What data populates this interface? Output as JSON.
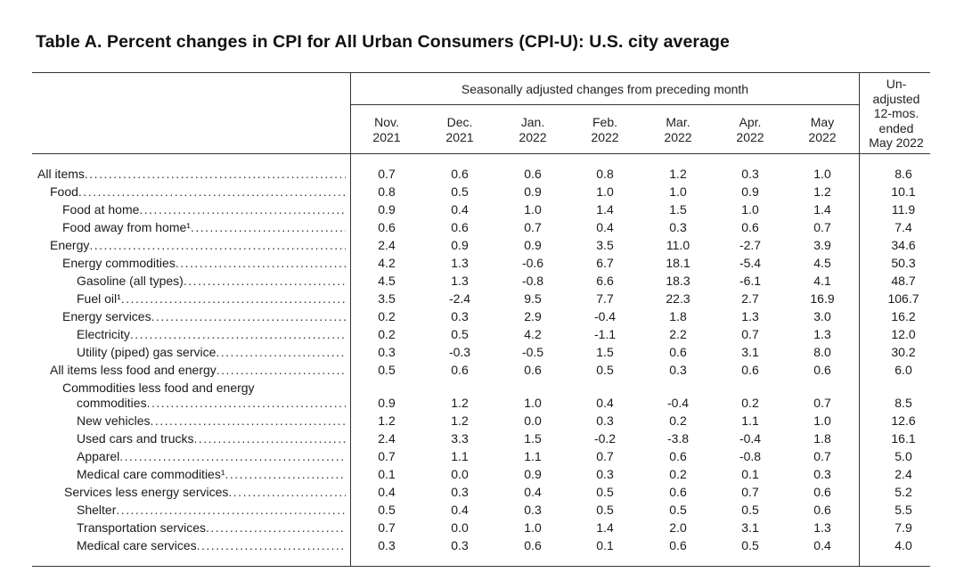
{
  "title": "Table A. Percent changes in CPI for All Urban Consumers (CPI-U): U.S. city average",
  "header": {
    "group_label": "Seasonally adjusted changes from preceding month",
    "months": [
      {
        "line1": "Nov.",
        "line2": "2021"
      },
      {
        "line1": "Dec.",
        "line2": "2021"
      },
      {
        "line1": "Jan.",
        "line2": "2022"
      },
      {
        "line1": "Feb.",
        "line2": "2022"
      },
      {
        "line1": "Mar.",
        "line2": "2022"
      },
      {
        "line1": "Apr.",
        "line2": "2022"
      },
      {
        "line1": "May",
        "line2": "2022"
      }
    ],
    "unadjusted_lines": [
      "Un-",
      "adjusted",
      "12-mos.",
      "ended",
      "May 2022"
    ]
  },
  "rows": [
    {
      "label": "All items",
      "values": [
        "0.7",
        "0.6",
        "0.6",
        "0.8",
        "1.2",
        "0.3",
        "1.0",
        "8.6"
      ]
    },
    {
      "label": "Food",
      "values": [
        "0.8",
        "0.5",
        "0.9",
        "1.0",
        "1.0",
        "0.9",
        "1.2",
        "10.1"
      ]
    },
    {
      "label": "Food at home",
      "values": [
        "0.9",
        "0.4",
        "1.0",
        "1.4",
        "1.5",
        "1.0",
        "1.4",
        "11.9"
      ]
    },
    {
      "label": "Food away from home¹",
      "values": [
        "0.6",
        "0.6",
        "0.7",
        "0.4",
        "0.3",
        "0.6",
        "0.7",
        "7.4"
      ]
    },
    {
      "label": "Energy",
      "values": [
        "2.4",
        "0.9",
        "0.9",
        "3.5",
        "11.0",
        "-2.7",
        "3.9",
        "34.6"
      ]
    },
    {
      "label": "Energy commodities",
      "values": [
        "4.2",
        "1.3",
        "-0.6",
        "6.7",
        "18.1",
        "-5.4",
        "4.5",
        "50.3"
      ]
    },
    {
      "label": "Gasoline (all types)",
      "values": [
        "4.5",
        "1.3",
        "-0.8",
        "6.6",
        "18.3",
        "-6.1",
        "4.1",
        "48.7"
      ]
    },
    {
      "label": "Fuel oil¹",
      "values": [
        "3.5",
        "-2.4",
        "9.5",
        "7.7",
        "22.3",
        "2.7",
        "16.9",
        "106.7"
      ]
    },
    {
      "label": "Energy services",
      "values": [
        "0.2",
        "0.3",
        "2.9",
        "-0.4",
        "1.8",
        "1.3",
        "3.0",
        "16.2"
      ]
    },
    {
      "label": "Electricity",
      "values": [
        "0.2",
        "0.5",
        "4.2",
        "-1.1",
        "2.2",
        "0.7",
        "1.3",
        "12.0"
      ]
    },
    {
      "label": "Utility (piped) gas service",
      "values": [
        "0.3",
        "-0.3",
        "-0.5",
        "1.5",
        "0.6",
        "3.1",
        "8.0",
        "30.2"
      ]
    },
    {
      "label": "All items less food and energy",
      "values": [
        "0.5",
        "0.6",
        "0.6",
        "0.5",
        "0.3",
        "0.6",
        "0.6",
        "6.0"
      ]
    },
    {
      "label": "Commodities less food and energy",
      "label2": "commodities",
      "values": [
        "0.9",
        "1.2",
        "1.0",
        "0.4",
        "-0.4",
        "0.2",
        "0.7",
        "8.5"
      ]
    },
    {
      "label": "New vehicles",
      "values": [
        "1.2",
        "1.2",
        "0.0",
        "0.3",
        "0.2",
        "1.1",
        "1.0",
        "12.6"
      ]
    },
    {
      "label": "Used cars and trucks",
      "values": [
        "2.4",
        "3.3",
        "1.5",
        "-0.2",
        "-3.8",
        "-0.4",
        "1.8",
        "16.1"
      ]
    },
    {
      "label": "Apparel",
      "values": [
        "0.7",
        "1.1",
        "1.1",
        "0.7",
        "0.6",
        "-0.8",
        "0.7",
        "5.0"
      ]
    },
    {
      "label": "Medical care commodities¹",
      "values": [
        "0.1",
        "0.0",
        "0.9",
        "0.3",
        "0.2",
        "0.1",
        "0.3",
        "2.4"
      ]
    },
    {
      "label": "Services less energy services",
      "values": [
        "0.4",
        "0.3",
        "0.4",
        "0.5",
        "0.6",
        "0.7",
        "0.6",
        "5.2"
      ]
    },
    {
      "label": "Shelter",
      "values": [
        "0.5",
        "0.4",
        "0.3",
        "0.5",
        "0.5",
        "0.5",
        "0.6",
        "5.5"
      ]
    },
    {
      "label": "Transportation services",
      "values": [
        "0.7",
        "0.0",
        "1.0",
        "1.4",
        "2.0",
        "3.1",
        "1.3",
        "7.9"
      ]
    },
    {
      "label": "Medical care services",
      "values": [
        "0.3",
        "0.3",
        "0.6",
        "0.1",
        "0.6",
        "0.5",
        "0.4",
        "4.0"
      ]
    }
  ]
}
